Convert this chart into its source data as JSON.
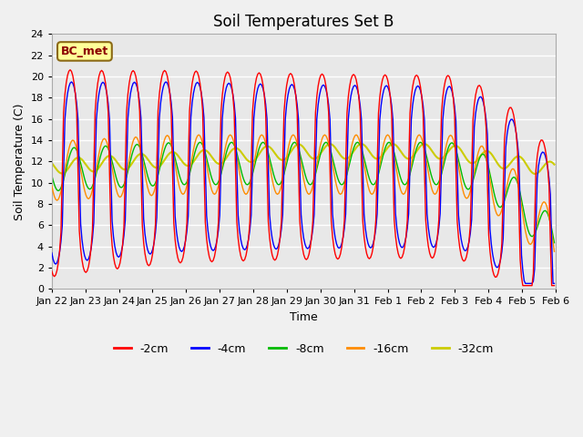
{
  "title": "Soil Temperatures Set B",
  "xlabel": "Time",
  "ylabel": "Soil Temperature (C)",
  "ylim": [
    0,
    24
  ],
  "yticks": [
    0,
    2,
    4,
    6,
    8,
    10,
    12,
    14,
    16,
    18,
    20,
    22,
    24
  ],
  "xtick_labels": [
    "Jan 22",
    "Jan 23",
    "Jan 24",
    "Jan 25",
    "Jan 26",
    "Jan 27",
    "Jan 28",
    "Jan 29",
    "Jan 30",
    "Jan 31",
    "Feb 1",
    "Feb 2",
    "Feb 3",
    "Feb 4",
    "Feb 5",
    "Feb 6"
  ],
  "label_box_text": "BC_met",
  "colors": {
    "-2cm": "#FF0000",
    "-4cm": "#0000FF",
    "-8cm": "#00BB00",
    "-16cm": "#FF8C00",
    "-32cm": "#CCCC00"
  },
  "legend_labels": [
    "-2cm",
    "-4cm",
    "-8cm",
    "-16cm",
    "-32cm"
  ],
  "bg_color": "#E8E8E8",
  "fig_bg_color": "#F0F0F0",
  "grid_color": "#FFFFFF",
  "n_days": 16
}
